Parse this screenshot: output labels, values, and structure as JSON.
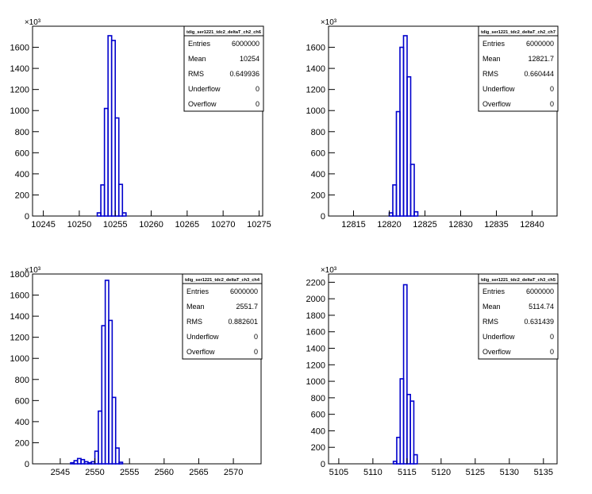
{
  "chart_data": [
    {
      "type": "bar",
      "title": "tdig_ser1221_tdc2_deltaT_ch2_ch6",
      "y_exponent": "×10³",
      "xlim": [
        10243.5,
        10275.5
      ],
      "ylim": [
        0,
        1800
      ],
      "x_ticks": [
        10245,
        10250,
        10255,
        10260,
        10265,
        10270,
        10275
      ],
      "y_ticks": [
        0,
        200,
        400,
        600,
        800,
        1000,
        1200,
        1400,
        1600
      ],
      "bin_width": 0.5,
      "bins": [
        {
          "x": 10252.5,
          "y": 30
        },
        {
          "x": 10253.0,
          "y": 295
        },
        {
          "x": 10253.5,
          "y": 1020
        },
        {
          "x": 10254.0,
          "y": 1710
        },
        {
          "x": 10254.5,
          "y": 1665
        },
        {
          "x": 10255.0,
          "y": 930
        },
        {
          "x": 10255.5,
          "y": 300
        },
        {
          "x": 10256.0,
          "y": 30
        }
      ],
      "stats": [
        {
          "label": "Entries",
          "value": "6000000"
        },
        {
          "label": "Mean",
          "value": "10254"
        },
        {
          "label": "RMS",
          "value": "0.649936"
        },
        {
          "label": "Underflow",
          "value": "0"
        },
        {
          "label": "Overflow",
          "value": "0"
        }
      ]
    },
    {
      "type": "bar",
      "title": "tdig_ser1221_tdc2_deltaT_ch2_ch7",
      "y_exponent": "×10³",
      "xlim": [
        12811.5,
        12843.5
      ],
      "ylim": [
        0,
        1800
      ],
      "x_ticks": [
        12815,
        12820,
        12825,
        12830,
        12835,
        12840
      ],
      "y_ticks": [
        0,
        200,
        400,
        600,
        800,
        1000,
        1200,
        1400,
        1600
      ],
      "bin_width": 0.5,
      "bins": [
        {
          "x": 12820.0,
          "y": 30
        },
        {
          "x": 12820.5,
          "y": 295
        },
        {
          "x": 12821.0,
          "y": 990
        },
        {
          "x": 12821.5,
          "y": 1600
        },
        {
          "x": 12822.0,
          "y": 1710
        },
        {
          "x": 12822.5,
          "y": 1320
        },
        {
          "x": 12823.0,
          "y": 490
        },
        {
          "x": 12823.5,
          "y": 40
        }
      ],
      "stats": [
        {
          "label": "Entries",
          "value": "6000000"
        },
        {
          "label": "Mean",
          "value": "12821.7"
        },
        {
          "label": "RMS",
          "value": "0.660444"
        },
        {
          "label": "Underflow",
          "value": "0"
        },
        {
          "label": "Overflow",
          "value": "0"
        }
      ]
    },
    {
      "type": "bar",
      "title": "tdig_ser1221_tdc2_deltaT_ch3_ch4",
      "y_exponent": "×10³",
      "xlim": [
        2541.0,
        2574.0
      ],
      "ylim": [
        0,
        1800
      ],
      "x_ticks": [
        2545,
        2550,
        2555,
        2560,
        2565,
        2570
      ],
      "y_ticks": [
        0,
        200,
        400,
        600,
        800,
        1000,
        1200,
        1400,
        1600,
        1800
      ],
      "bin_width": 0.5,
      "bins": [
        {
          "x": 2546.5,
          "y": 10
        },
        {
          "x": 2547.0,
          "y": 30
        },
        {
          "x": 2547.5,
          "y": 50
        },
        {
          "x": 2548.0,
          "y": 40
        },
        {
          "x": 2548.5,
          "y": 20
        },
        {
          "x": 2549.0,
          "y": 10
        },
        {
          "x": 2549.5,
          "y": 20
        },
        {
          "x": 2550.0,
          "y": 120
        },
        {
          "x": 2550.5,
          "y": 500
        },
        {
          "x": 2551.0,
          "y": 1310
        },
        {
          "x": 2551.5,
          "y": 1740
        },
        {
          "x": 2552.0,
          "y": 1360
        },
        {
          "x": 2552.5,
          "y": 630
        },
        {
          "x": 2553.0,
          "y": 150
        },
        {
          "x": 2553.5,
          "y": 15
        }
      ],
      "stats": [
        {
          "label": "Entries",
          "value": "6000000"
        },
        {
          "label": "Mean",
          "value": "2551.7"
        },
        {
          "label": "RMS",
          "value": "0.882601"
        },
        {
          "label": "Underflow",
          "value": "0"
        },
        {
          "label": "Overflow",
          "value": "0"
        }
      ]
    },
    {
      "type": "bar",
      "title": "tdig_ser1221_tdc2_deltaT_ch3_ch5",
      "y_exponent": "×10³",
      "xlim": [
        5103.5,
        5137.0
      ],
      "ylim": [
        0,
        2300
      ],
      "x_ticks": [
        5105,
        5110,
        5115,
        5120,
        5125,
        5130,
        5135
      ],
      "y_ticks": [
        0,
        200,
        400,
        600,
        800,
        1000,
        1200,
        1400,
        1600,
        1800,
        2000,
        2200
      ],
      "bin_width": 0.5,
      "bins": [
        {
          "x": 5113.0,
          "y": 30
        },
        {
          "x": 5113.5,
          "y": 320
        },
        {
          "x": 5114.0,
          "y": 1030
        },
        {
          "x": 5114.5,
          "y": 2170
        },
        {
          "x": 5115.0,
          "y": 840
        },
        {
          "x": 5115.5,
          "y": 760
        },
        {
          "x": 5116.0,
          "y": 110
        }
      ],
      "stats": [
        {
          "label": "Entries",
          "value": "6000000"
        },
        {
          "label": "Mean",
          "value": "5114.74"
        },
        {
          "label": "RMS",
          "value": "0.631439"
        },
        {
          "label": "Underflow",
          "value": "0"
        },
        {
          "label": "Overflow",
          "value": "0"
        }
      ]
    }
  ]
}
